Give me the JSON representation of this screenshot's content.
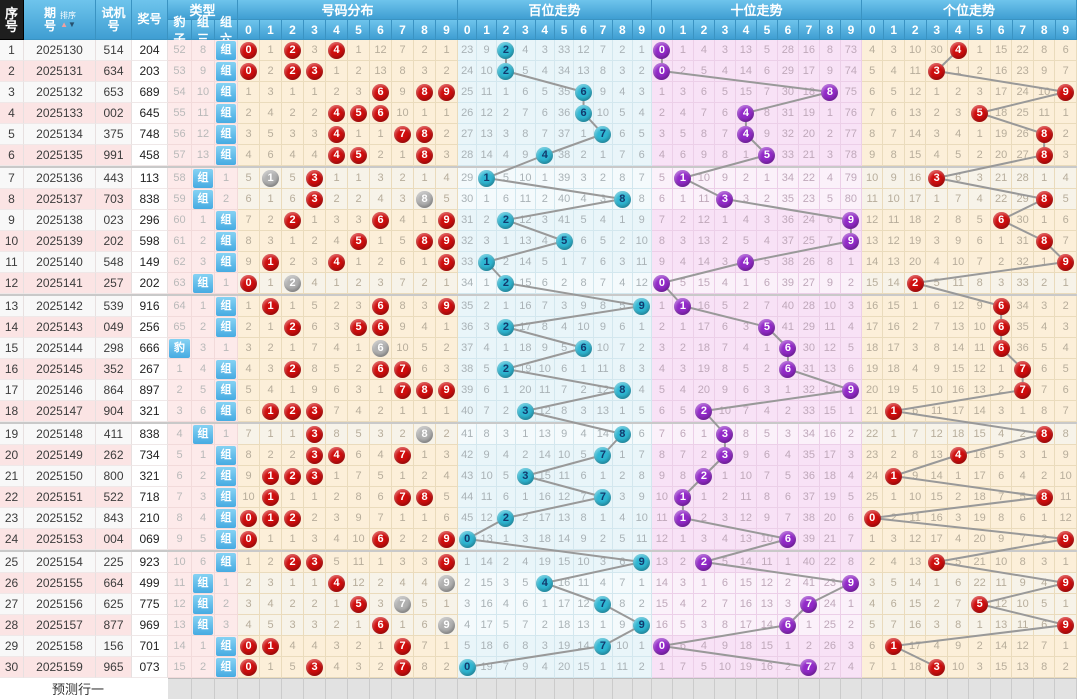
{
  "header": {
    "xuhao": "序号",
    "qihao": "期号",
    "paixu": "排序",
    "shijihao": "试机号",
    "jianghao": "奖号",
    "leixing": "类型",
    "baozi": "豹子",
    "zusan": "组三",
    "zuliu": "组六",
    "haoma_fenbu": "号码分布",
    "baiwei": "百位走势",
    "shiwei": "十位走势",
    "gewei": "个位走势",
    "digits": [
      "0",
      "1",
      "2",
      "3",
      "4",
      "5",
      "6",
      "7",
      "8",
      "9"
    ]
  },
  "footer": {
    "label": "预测行一"
  },
  "chart_data": {
    "type": "table",
    "rows": [
      {
        "i": 1,
        "period": "2025130",
        "test": "514",
        "win": "204"
      },
      {
        "i": 2,
        "period": "2025131",
        "test": "634",
        "win": "203"
      },
      {
        "i": 3,
        "period": "2025132",
        "test": "653",
        "win": "689"
      },
      {
        "i": 4,
        "period": "2025133",
        "test": "002",
        "win": "645"
      },
      {
        "i": 5,
        "period": "2025134",
        "test": "375",
        "win": "748"
      },
      {
        "i": 6,
        "period": "2025135",
        "test": "991",
        "win": "458"
      },
      {
        "i": 7,
        "period": "2025136",
        "test": "443",
        "win": "113"
      },
      {
        "i": 8,
        "period": "2025137",
        "test": "703",
        "win": "838"
      },
      {
        "i": 9,
        "period": "2025138",
        "test": "023",
        "win": "296"
      },
      {
        "i": 10,
        "period": "2025139",
        "test": "202",
        "win": "598"
      },
      {
        "i": 11,
        "period": "2025140",
        "test": "548",
        "win": "149"
      },
      {
        "i": 12,
        "period": "2025141",
        "test": "257",
        "win": "202"
      },
      {
        "i": 13,
        "period": "2025142",
        "test": "539",
        "win": "916"
      },
      {
        "i": 14,
        "period": "2025143",
        "test": "049",
        "win": "256"
      },
      {
        "i": 15,
        "period": "2025144",
        "test": "298",
        "win": "666"
      },
      {
        "i": 16,
        "period": "2025145",
        "test": "352",
        "win": "267"
      },
      {
        "i": 17,
        "period": "2025146",
        "test": "864",
        "win": "897"
      },
      {
        "i": 18,
        "period": "2025147",
        "test": "904",
        "win": "321"
      },
      {
        "i": 19,
        "period": "2025148",
        "test": "411",
        "win": "838"
      },
      {
        "i": 20,
        "period": "2025149",
        "test": "262",
        "win": "734"
      },
      {
        "i": 21,
        "period": "2025150",
        "test": "800",
        "win": "321"
      },
      {
        "i": 22,
        "period": "2025151",
        "test": "522",
        "win": "718"
      },
      {
        "i": 23,
        "period": "2025152",
        "test": "843",
        "win": "210"
      },
      {
        "i": 24,
        "period": "2025153",
        "test": "004",
        "win": "069"
      },
      {
        "i": 25,
        "period": "2025154",
        "test": "225",
        "win": "923"
      },
      {
        "i": 26,
        "period": "2025155",
        "test": "664",
        "win": "499"
      },
      {
        "i": 27,
        "period": "2025156",
        "test": "625",
        "win": "775"
      },
      {
        "i": 28,
        "period": "2025157",
        "test": "877",
        "win": "969"
      },
      {
        "i": 29,
        "period": "2025158",
        "test": "156",
        "win": "701"
      },
      {
        "i": 30,
        "period": "2025159",
        "test": "965",
        "win": "073"
      }
    ],
    "row1_miss_seeds": {
      "type": {
        "baozi": 52,
        "zusan": 8,
        "zuliu": 0
      },
      "distribution": [
        0,
        1,
        0,
        3,
        0,
        1,
        12,
        7,
        2,
        1
      ],
      "hundreds": [
        23,
        9,
        0,
        4,
        3,
        33,
        12,
        7,
        2,
        1
      ],
      "tens": [
        0,
        1,
        4,
        3,
        13,
        5,
        28,
        16,
        8,
        73
      ],
      "units": [
        4,
        3,
        10,
        30,
        0,
        1,
        15,
        22,
        8,
        6
      ]
    },
    "group_separators_after_rows": [
      6,
      12,
      18,
      24
    ]
  },
  "colors": {
    "ball_red": "#cf0d0d",
    "ball_gray": "#b1b1b1",
    "ball_cyan": "#2eb6d2",
    "ball_purple": "#9229c8",
    "hit_blue": "#46abe2",
    "cream_bg": "#fcefd9",
    "cyan_bg": "#e9f5f9",
    "lavender_bg": "#f8e2f6",
    "line": "#999999"
  }
}
